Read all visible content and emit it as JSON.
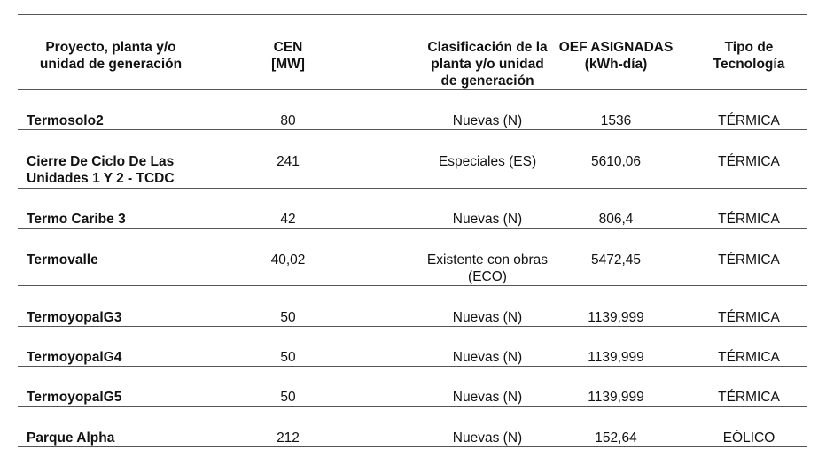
{
  "headers": {
    "proyecto": "Proyecto, planta y/o\nunidad de generación",
    "cen": "CEN\n[MW]",
    "clasificacion": "Clasificación de la\nplanta y/o unidad\nde generación",
    "oef": "OEF ASIGNADAS\n(kWh-día)",
    "tipo": "Tipo de\nTecnología"
  },
  "rows": [
    {
      "name": "Termosolo2",
      "cen": "80",
      "clasificacion": "Nuevas (N)",
      "oef": "1536",
      "tipo": "TÉRMICA"
    },
    {
      "name": "Cierre De Ciclo De Las\nUnidades 1 Y 2 - TCDC",
      "cen": "241",
      "clasificacion": "Especiales (ES)",
      "oef": "5610,06",
      "tipo": "TÉRMICA"
    },
    {
      "name": "Termo Caribe 3",
      "cen": "42",
      "clasificacion": "Nuevas (N)",
      "oef": "806,4",
      "tipo": "TÉRMICA"
    },
    {
      "name": "Termovalle",
      "cen": "40,02",
      "clasificacion": "Existente con obras\n(ECO)",
      "oef": "5472,45",
      "tipo": "TÉRMICA"
    },
    {
      "name": "TermoyopalG3",
      "cen": "50",
      "clasificacion": "Nuevas (N)",
      "oef": "1139,999",
      "tipo": "TÉRMICA"
    },
    {
      "name": "TermoyopalG4",
      "cen": "50",
      "clasificacion": "Nuevas (N)",
      "oef": "1139,999",
      "tipo": "TÉRMICA"
    },
    {
      "name": "TermoyopalG5",
      "cen": "50",
      "clasificacion": "Nuevas (N)",
      "oef": "1139,999",
      "tipo": "TÉRMICA"
    },
    {
      "name": "Parque Alpha",
      "cen": "212",
      "clasificacion": "Nuevas (N)",
      "oef": "152,64",
      "tipo": "EÓLICO"
    }
  ]
}
